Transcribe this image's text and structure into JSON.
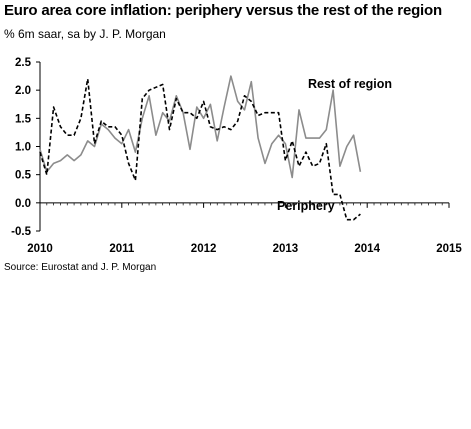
{
  "chart_data": {
    "type": "line",
    "title": "Euro area core inflation: periphery versus the rest of the region",
    "subtitle": "% 6m saar, sa by J. P. Morgan",
    "source": "Source: Eurostat and J. P. Morgan",
    "xlim": [
      2010,
      2015
    ],
    "ylim": [
      -0.5,
      2.5
    ],
    "x_ticks": [
      "2010",
      "2011",
      "2012",
      "2013",
      "2014",
      "2015"
    ],
    "y_ticks": [
      "2.5",
      "2.0",
      "1.5",
      "1.0",
      "0.5",
      "0.0",
      "-0.5"
    ],
    "grid": false,
    "series": [
      {
        "name": "Rest of region",
        "style": "solid",
        "color": "#8c8c8c",
        "start": 2010.0,
        "step_months": 1,
        "values": [
          0.95,
          0.55,
          0.7,
          0.75,
          0.85,
          0.75,
          0.85,
          1.1,
          1.0,
          1.4,
          1.3,
          1.15,
          1.05,
          1.3,
          0.9,
          1.5,
          1.9,
          1.2,
          1.6,
          1.45,
          1.9,
          1.6,
          0.95,
          1.7,
          1.5,
          1.75,
          1.1,
          1.7,
          2.25,
          1.8,
          1.65,
          2.15,
          1.15,
          0.7,
          1.05,
          1.2,
          1.05,
          0.45,
          1.65,
          1.15,
          1.15,
          1.15,
          1.3,
          2.0,
          0.65,
          1.0,
          1.2,
          0.55
        ]
      },
      {
        "name": "Periphery",
        "style": "dashed",
        "color": "#000000",
        "start": 2010.0,
        "step_months": 1,
        "values": [
          0.9,
          0.5,
          1.7,
          1.35,
          1.2,
          1.2,
          1.5,
          2.2,
          1.05,
          1.45,
          1.35,
          1.35,
          1.2,
          0.7,
          0.4,
          1.85,
          2.0,
          2.05,
          2.1,
          1.3,
          1.85,
          1.6,
          1.6,
          1.5,
          1.8,
          1.35,
          1.3,
          1.35,
          1.3,
          1.45,
          1.9,
          1.8,
          1.55,
          1.6,
          1.6,
          1.6,
          0.75,
          1.1,
          0.65,
          0.9,
          0.65,
          0.7,
          1.05,
          0.15,
          0.15,
          -0.3,
          -0.3,
          -0.2
        ]
      }
    ]
  }
}
